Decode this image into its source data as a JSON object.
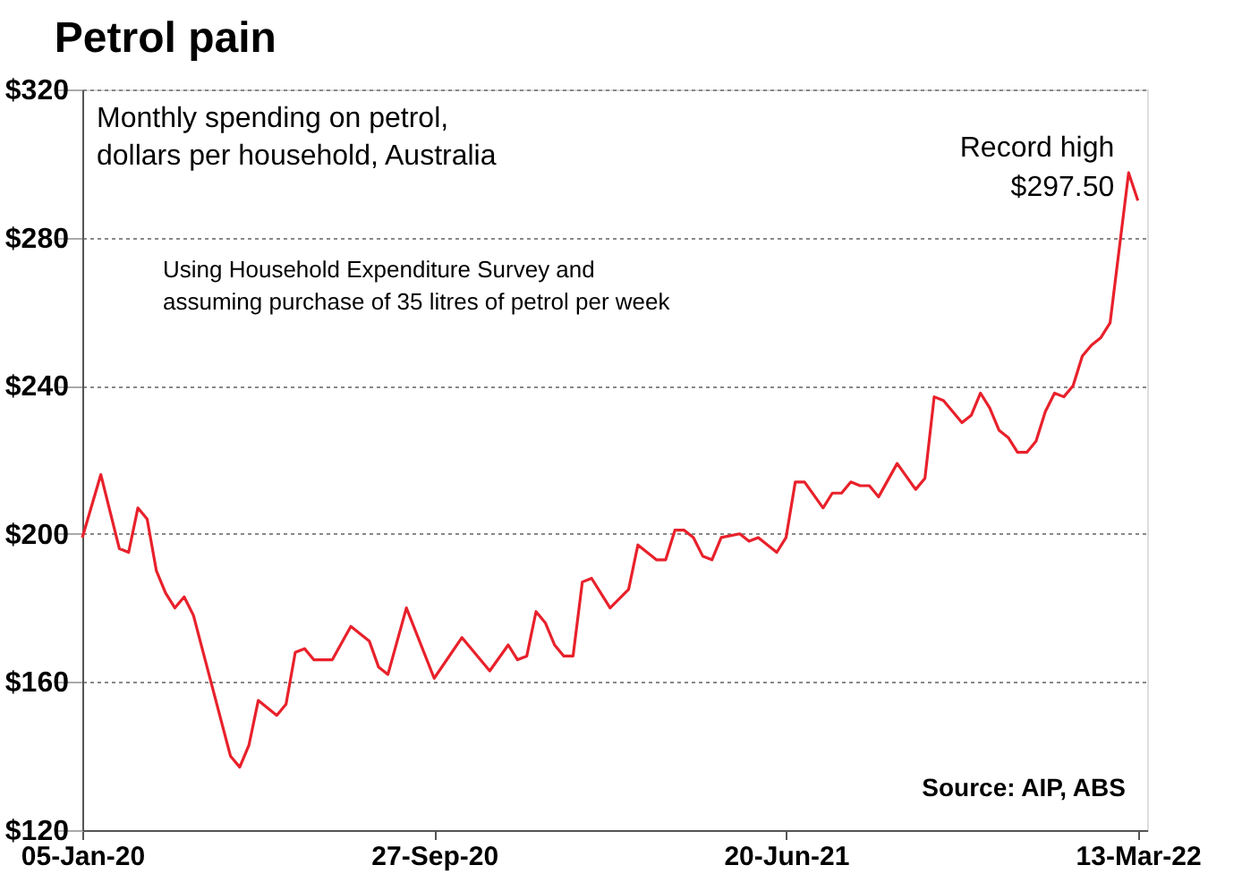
{
  "chart_data": {
    "type": "line",
    "title": "Petrol pain",
    "x": [
      "2020-01-05",
      "2020-01-19",
      "2020-02-02",
      "2020-02-09",
      "2020-02-16",
      "2020-02-23",
      "2020-03-01",
      "2020-03-08",
      "2020-03-15",
      "2020-03-22",
      "2020-03-29",
      "2020-04-26",
      "2020-05-03",
      "2020-05-10",
      "2020-05-17",
      "2020-05-31",
      "2020-06-07",
      "2020-06-14",
      "2020-06-21",
      "2020-06-28",
      "2020-07-12",
      "2020-07-26",
      "2020-08-09",
      "2020-08-16",
      "2020-08-23",
      "2020-09-06",
      "2020-09-27",
      "2020-10-18",
      "2020-11-08",
      "2020-11-22",
      "2020-11-29",
      "2020-12-06",
      "2020-12-13",
      "2020-12-20",
      "2020-12-27",
      "2021-01-03",
      "2021-01-10",
      "2021-01-17",
      "2021-01-24",
      "2021-02-07",
      "2021-02-21",
      "2021-02-28",
      "2021-03-07",
      "2021-03-14",
      "2021-03-21",
      "2021-03-28",
      "2021-04-04",
      "2021-04-11",
      "2021-04-18",
      "2021-04-25",
      "2021-05-02",
      "2021-05-16",
      "2021-05-23",
      "2021-05-30",
      "2021-06-13",
      "2021-06-20",
      "2021-06-27",
      "2021-07-04",
      "2021-07-18",
      "2021-07-25",
      "2021-08-01",
      "2021-08-08",
      "2021-08-15",
      "2021-08-22",
      "2021-08-29",
      "2021-09-12",
      "2021-09-26",
      "2021-10-03",
      "2021-10-10",
      "2021-10-17",
      "2021-10-31",
      "2021-11-07",
      "2021-11-14",
      "2021-11-21",
      "2021-11-28",
      "2021-12-05",
      "2021-12-12",
      "2021-12-19",
      "2021-12-26",
      "2022-01-02",
      "2022-01-09",
      "2022-01-16",
      "2022-01-23",
      "2022-01-30",
      "2022-02-06",
      "2022-02-13",
      "2022-02-20",
      "2022-03-06",
      "2022-03-13"
    ],
    "series": [
      {
        "color": "#e8212b",
        "values": [
          199,
          216,
          196,
          195,
          207,
          204,
          190,
          184,
          180,
          183,
          178,
          140,
          137,
          143,
          155,
          151,
          154,
          168,
          169,
          166,
          166,
          175,
          171,
          164,
          162,
          180,
          161,
          172,
          163,
          170,
          166,
          167,
          179,
          176,
          170,
          167,
          167,
          187,
          188,
          180,
          185,
          197,
          195,
          193,
          193,
          201,
          201,
          199,
          194,
          193,
          199,
          200,
          198,
          199,
          195,
          199,
          214,
          214,
          207,
          211,
          211,
          214,
          213,
          213,
          210,
          219,
          212,
          215,
          237,
          236,
          230,
          232,
          238,
          234,
          228,
          226,
          222,
          222,
          225,
          233,
          238,
          237,
          240,
          248,
          251,
          253,
          257,
          297.5,
          290
        ]
      }
    ],
    "xlim": [
      "2020-01-05",
      "2022-03-20"
    ],
    "xticks": [
      {
        "value": "2020-01-05",
        "label": "05-Jan-20"
      },
      {
        "value": "2020-09-27",
        "label": "27-Sep-20"
      },
      {
        "value": "2021-06-20",
        "label": "20-Jun-21"
      },
      {
        "value": "2022-03-13",
        "label": "13-Mar-22"
      }
    ],
    "ylim": [
      120,
      320
    ],
    "yticks": [
      {
        "value": 120,
        "label": "$120"
      },
      {
        "value": 160,
        "label": "$160"
      },
      {
        "value": 200,
        "label": "$200"
      },
      {
        "value": 240,
        "label": "$240"
      },
      {
        "value": 280,
        "label": "$280"
      },
      {
        "value": 320,
        "label": "$320"
      }
    ],
    "grid": "y",
    "line_style": "solid",
    "marker": "none",
    "annotations": [
      "Monthly spending on petrol,\ndollars per household, Australia",
      "Using Household Expenditure Survey and\nassuming purchase of 35 litres of petrol per week",
      {
        "text": "Record high\n$297.50",
        "x": "2022-03-06",
        "y": 297.5
      },
      "Source: AIP, ABS"
    ]
  }
}
